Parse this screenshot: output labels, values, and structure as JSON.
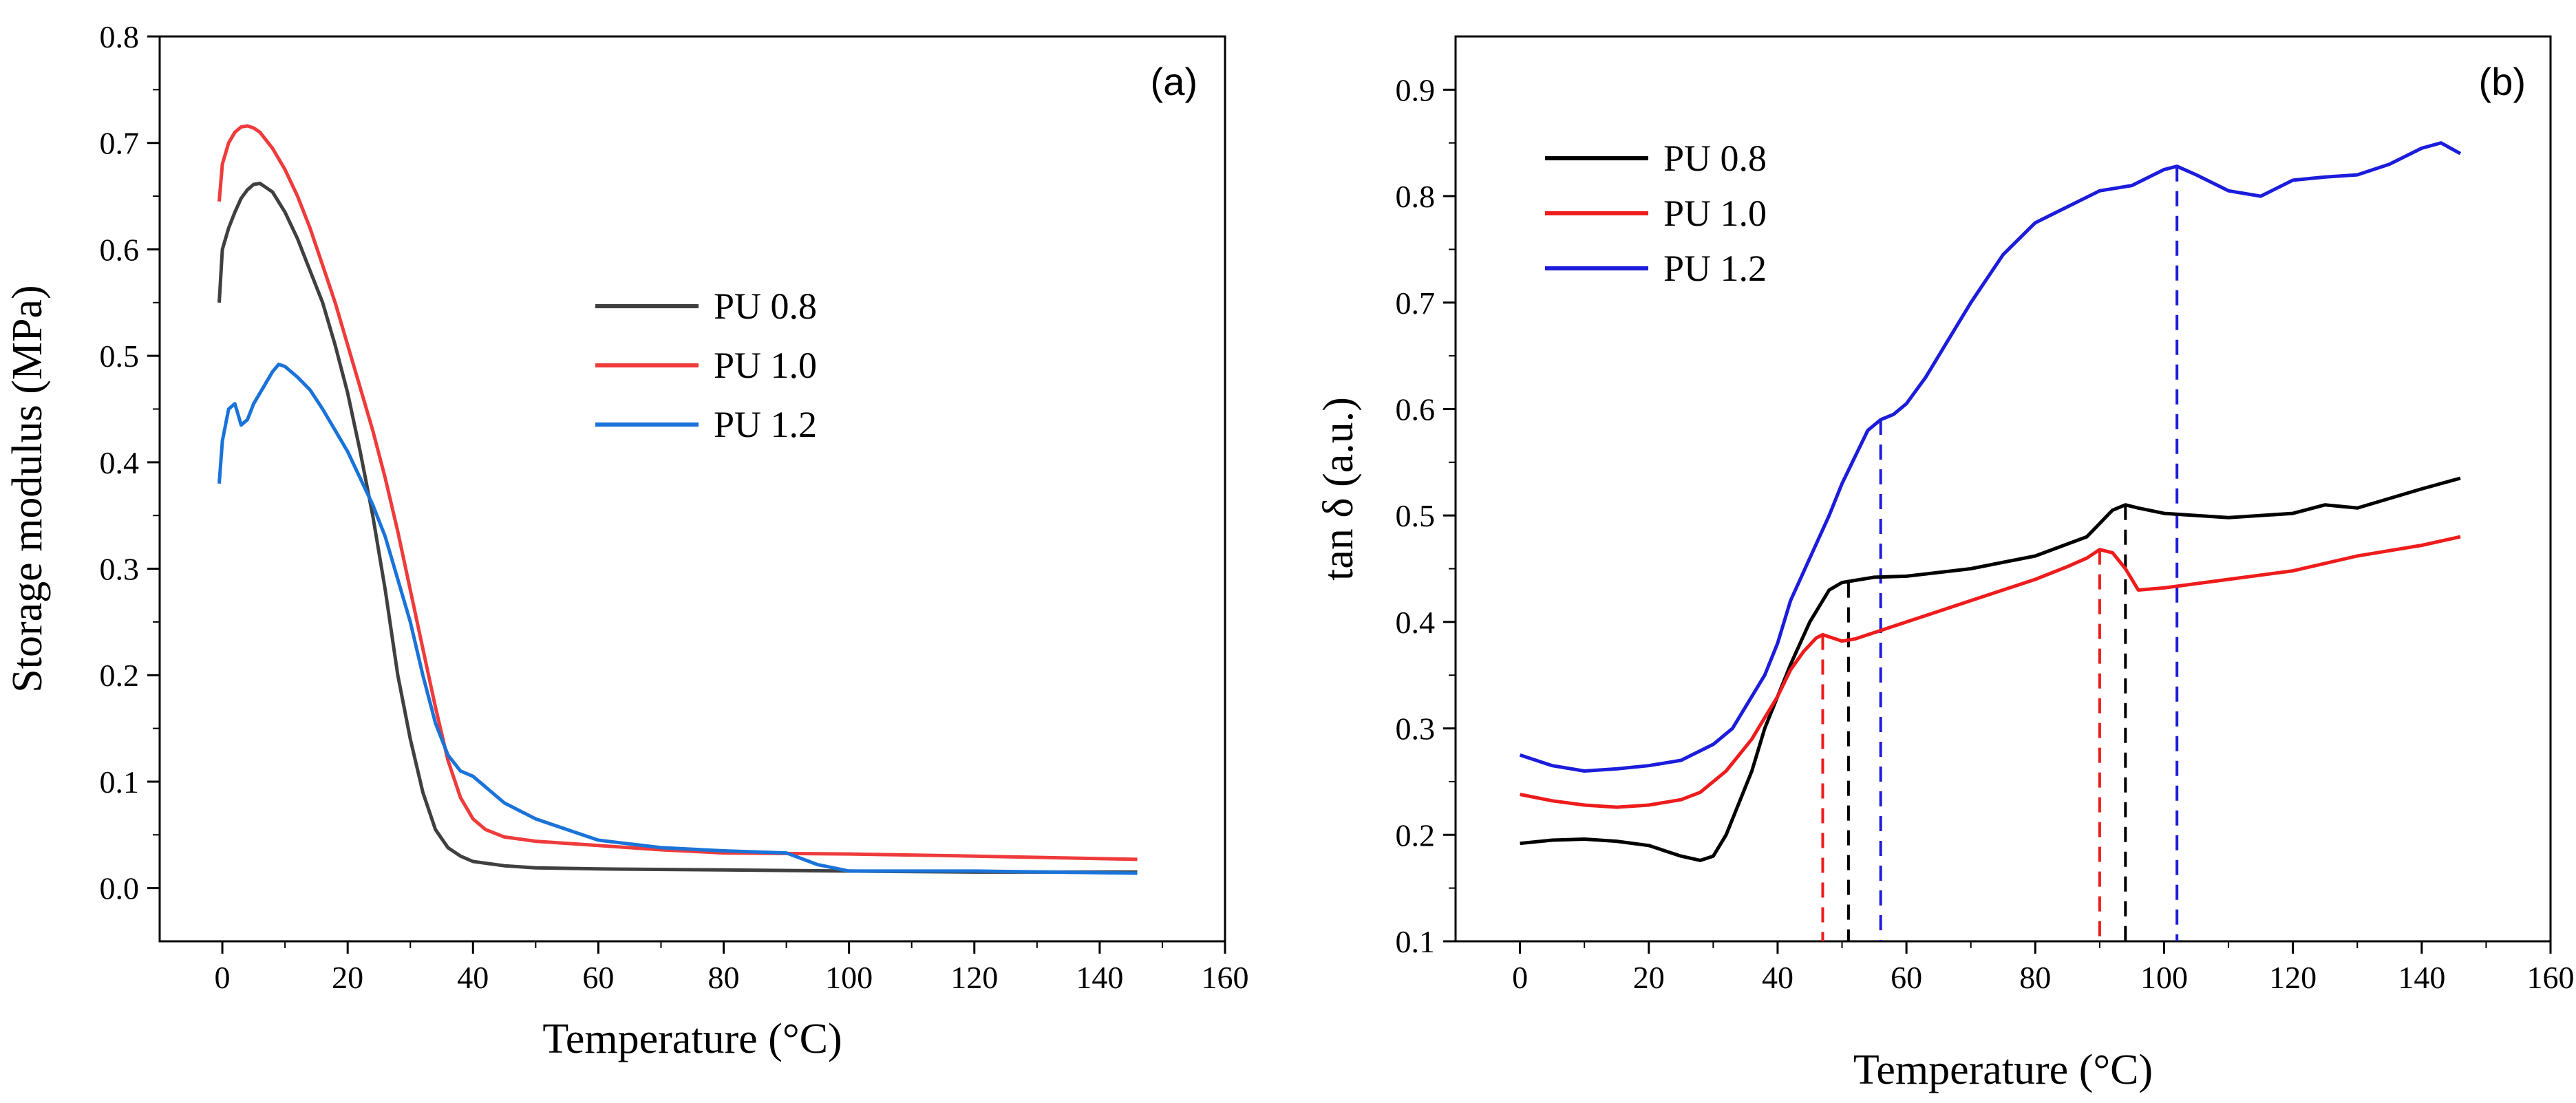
{
  "chart_data": [
    {
      "type": "line",
      "panel_label": "(a)",
      "xlabel": "Temperature (°C)",
      "ylabel": "Storage modulus (MPa)",
      "xlim": [
        -10,
        160
      ],
      "ylim": [
        -0.05,
        0.8
      ],
      "xticks": [
        0,
        20,
        40,
        60,
        80,
        100,
        120,
        140,
        160
      ],
      "yticks": [
        0.0,
        0.1,
        0.2,
        0.3,
        0.4,
        0.5,
        0.6,
        0.7,
        0.8
      ],
      "xtick_labels": [
        "0",
        "20",
        "40",
        "60",
        "80",
        "100",
        "120",
        "140",
        "160"
      ],
      "ytick_labels": [
        "0.0",
        "0.1",
        "0.2",
        "0.3",
        "0.4",
        "0.5",
        "0.6",
        "0.7",
        "0.8"
      ],
      "legend_position": "center-right",
      "series": [
        {
          "name": "PU 0.8",
          "color": "#404040",
          "x": [
            -0.5,
            0,
            1,
            2,
            3,
            4,
            5,
            6,
            8,
            10,
            12,
            14,
            16,
            18,
            20,
            22,
            24,
            26,
            28,
            30,
            32,
            34,
            36,
            38,
            40,
            45,
            50,
            60,
            80,
            100,
            120,
            146
          ],
          "y": [
            0.55,
            0.6,
            0.62,
            0.635,
            0.648,
            0.656,
            0.661,
            0.662,
            0.654,
            0.635,
            0.61,
            0.58,
            0.55,
            0.51,
            0.465,
            0.41,
            0.35,
            0.28,
            0.2,
            0.14,
            0.09,
            0.055,
            0.038,
            0.03,
            0.025,
            0.021,
            0.019,
            0.018,
            0.017,
            0.016,
            0.015,
            0.015
          ]
        },
        {
          "name": "PU 1.0",
          "color": "#ef3b3b",
          "x": [
            -0.5,
            0,
            1,
            2,
            3,
            4,
            5,
            6,
            8,
            10,
            12,
            14,
            16,
            18,
            20,
            22,
            24,
            26,
            28,
            30,
            32,
            34,
            36,
            38,
            40,
            42,
            45,
            50,
            60,
            70,
            80,
            100,
            120,
            146
          ],
          "y": [
            0.645,
            0.68,
            0.7,
            0.71,
            0.715,
            0.716,
            0.714,
            0.71,
            0.695,
            0.675,
            0.65,
            0.62,
            0.585,
            0.55,
            0.51,
            0.47,
            0.43,
            0.385,
            0.335,
            0.28,
            0.225,
            0.17,
            0.12,
            0.085,
            0.065,
            0.055,
            0.048,
            0.044,
            0.04,
            0.036,
            0.033,
            0.032,
            0.03,
            0.027
          ]
        },
        {
          "name": "PU 1.2",
          "color": "#1a73d9",
          "x": [
            -0.5,
            0,
            1,
            2,
            3,
            4,
            5,
            6,
            7,
            8,
            9,
            10,
            12,
            14,
            16,
            18,
            20,
            22,
            24,
            26,
            28,
            30,
            32,
            34,
            36,
            38,
            40,
            42,
            45,
            50,
            55,
            60,
            70,
            80,
            90,
            95,
            100,
            110,
            120,
            146
          ],
          "y": [
            0.38,
            0.42,
            0.45,
            0.455,
            0.435,
            0.44,
            0.455,
            0.465,
            0.475,
            0.485,
            0.492,
            0.49,
            0.48,
            0.468,
            0.45,
            0.43,
            0.41,
            0.385,
            0.36,
            0.33,
            0.29,
            0.25,
            0.2,
            0.155,
            0.125,
            0.11,
            0.105,
            0.095,
            0.08,
            0.065,
            0.055,
            0.045,
            0.038,
            0.035,
            0.033,
            0.022,
            0.016,
            0.016,
            0.016,
            0.014
          ]
        }
      ]
    },
    {
      "type": "line",
      "panel_label": "(b)",
      "xlabel": "Temperature (°C)",
      "ylabel": "tan δ (a.u.)",
      "xlim": [
        -10,
        160
      ],
      "ylim": [
        0.1,
        0.95
      ],
      "xticks": [
        0,
        20,
        40,
        60,
        80,
        100,
        120,
        140,
        160
      ],
      "yticks": [
        0.1,
        0.2,
        0.3,
        0.4,
        0.5,
        0.6,
        0.7,
        0.8,
        0.9
      ],
      "xtick_labels": [
        "0",
        "20",
        "40",
        "60",
        "80",
        "100",
        "120",
        "140",
        "160"
      ],
      "ytick_labels": [
        "0.1",
        "0.2",
        "0.3",
        "0.4",
        "0.5",
        "0.6",
        "0.7",
        "0.8",
        "0.9"
      ],
      "legend_position": "top-left",
      "series": [
        {
          "name": "PU 0.8",
          "color": "#000000",
          "x": [
            0,
            5,
            10,
            15,
            20,
            25,
            28,
            30,
            32,
            34,
            36,
            38,
            40,
            42,
            45,
            48,
            50,
            55,
            60,
            70,
            80,
            88,
            92,
            94,
            96,
            100,
            110,
            120,
            125,
            130,
            140,
            146
          ],
          "y": [
            0.192,
            0.195,
            0.196,
            0.194,
            0.19,
            0.18,
            0.176,
            0.18,
            0.2,
            0.23,
            0.26,
            0.3,
            0.33,
            0.36,
            0.4,
            0.43,
            0.437,
            0.442,
            0.443,
            0.45,
            0.462,
            0.48,
            0.505,
            0.51,
            0.507,
            0.502,
            0.498,
            0.502,
            0.51,
            0.507,
            0.525,
            0.535
          ]
        },
        {
          "name": "PU 1.0",
          "color": "#ee1c1c",
          "x": [
            0,
            5,
            10,
            15,
            20,
            25,
            28,
            30,
            32,
            34,
            36,
            38,
            40,
            42,
            44,
            46,
            47,
            48,
            50,
            52,
            55,
            60,
            70,
            80,
            85,
            88,
            90,
            92,
            94,
            96,
            100,
            110,
            120,
            130,
            140,
            146
          ],
          "y": [
            0.238,
            0.232,
            0.228,
            0.226,
            0.228,
            0.233,
            0.24,
            0.25,
            0.26,
            0.275,
            0.29,
            0.31,
            0.33,
            0.355,
            0.372,
            0.385,
            0.388,
            0.386,
            0.382,
            0.384,
            0.39,
            0.4,
            0.42,
            0.44,
            0.452,
            0.46,
            0.468,
            0.465,
            0.45,
            0.43,
            0.432,
            0.44,
            0.448,
            0.462,
            0.472,
            0.48
          ]
        },
        {
          "name": "PU 1.2",
          "color": "#1c1cdc",
          "x": [
            0,
            5,
            10,
            15,
            20,
            25,
            30,
            33,
            35,
            38,
            40,
            42,
            45,
            48,
            50,
            52,
            54,
            56,
            58,
            60,
            63,
            66,
            70,
            75,
            80,
            85,
            90,
            95,
            100,
            102,
            105,
            110,
            115,
            120,
            125,
            130,
            135,
            140,
            143,
            146
          ],
          "y": [
            0.275,
            0.265,
            0.26,
            0.262,
            0.265,
            0.27,
            0.285,
            0.3,
            0.32,
            0.35,
            0.38,
            0.42,
            0.46,
            0.5,
            0.53,
            0.555,
            0.58,
            0.59,
            0.595,
            0.605,
            0.63,
            0.66,
            0.7,
            0.745,
            0.775,
            0.79,
            0.805,
            0.81,
            0.825,
            0.828,
            0.82,
            0.805,
            0.8,
            0.815,
            0.818,
            0.82,
            0.83,
            0.845,
            0.85,
            0.84
          ]
        }
      ],
      "markers": [
        {
          "x": 47,
          "y": 0.388,
          "color": "#ee1c1c"
        },
        {
          "x": 51,
          "y": 0.437,
          "color": "#000000"
        },
        {
          "x": 56,
          "y": 0.59,
          "color": "#1c1cdc"
        },
        {
          "x": 90,
          "y": 0.468,
          "color": "#ee1c1c"
        },
        {
          "x": 94,
          "y": 0.51,
          "color": "#000000"
        },
        {
          "x": 102,
          "y": 0.828,
          "color": "#1c1cdc"
        }
      ]
    }
  ]
}
